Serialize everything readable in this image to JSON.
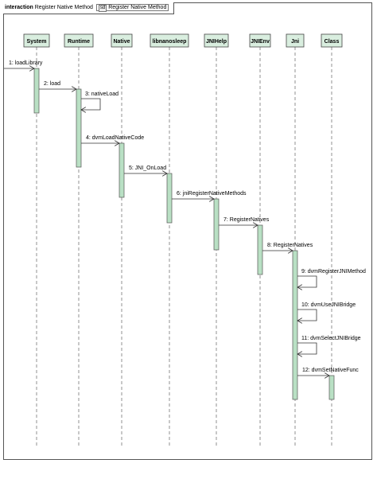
{
  "frame": {
    "keyword": "interaction",
    "name": "Register Native Method",
    "ref_icon": "sd",
    "ref_name": "Register Native Method"
  },
  "participants": [
    "System",
    "Runtime",
    "Native",
    "libnanosleep",
    "JNIHelp",
    "JNIEnv",
    "Jni",
    "Class"
  ],
  "messages": [
    {
      "label": "1: loadLibrary",
      "from": "external",
      "to": "System"
    },
    {
      "label": "2: load",
      "from": "System",
      "to": "Runtime"
    },
    {
      "label": "3: nativeLoad",
      "from": "Runtime",
      "to": "Runtime"
    },
    {
      "label": "4: dvmLoadNativeCode",
      "from": "Runtime",
      "to": "Native"
    },
    {
      "label": "5: JNI_OnLoad",
      "from": "Native",
      "to": "libnanosleep"
    },
    {
      "label": "6: jniRegisterNativeMethods",
      "from": "libnanosleep",
      "to": "JNIHelp"
    },
    {
      "label": "7: RegisterNatives",
      "from": "JNIHelp",
      "to": "JNIEnv"
    },
    {
      "label": "8: RegisterNatives",
      "from": "JNIEnv",
      "to": "Jni"
    },
    {
      "label": "9: dvmRegisterJNIMethod",
      "from": "Jni",
      "to": "Jni"
    },
    {
      "label": "10: dvmUseJNIBridge",
      "from": "Jni",
      "to": "Jni"
    },
    {
      "label": "11: dvmSelectJNIBridge",
      "from": "Jni",
      "to": "Jni"
    },
    {
      "label": "12: dvmSetNativeFunc",
      "from": "Jni",
      "to": "Class"
    }
  ]
}
